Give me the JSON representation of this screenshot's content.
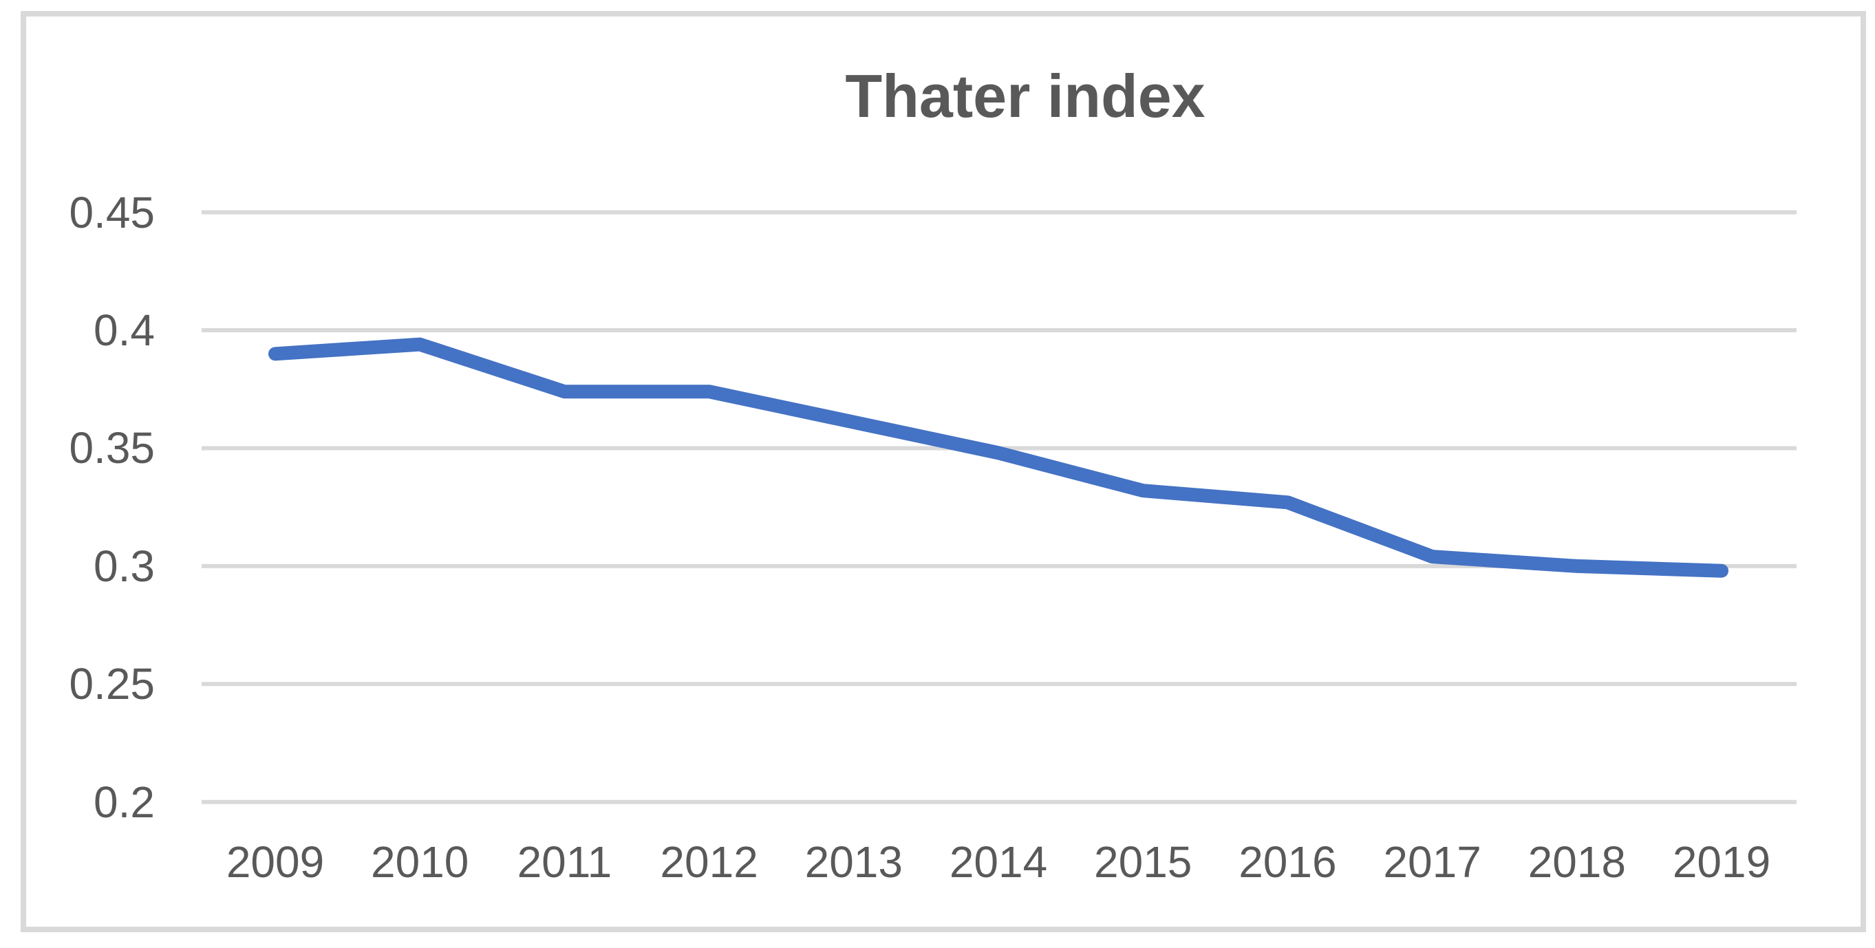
{
  "chart_data": {
    "type": "line",
    "title": "Thater index",
    "categories": [
      "2009",
      "2010",
      "2011",
      "2012",
      "2013",
      "2014",
      "2015",
      "2016",
      "2017",
      "2018",
      "2019"
    ],
    "values": [
      0.39,
      0.394,
      0.374,
      0.374,
      0.361,
      0.348,
      0.332,
      0.327,
      0.304,
      0.3,
      0.298
    ],
    "series": [
      {
        "name": "Thater index",
        "values": [
          0.39,
          0.394,
          0.374,
          0.374,
          0.361,
          0.348,
          0.332,
          0.327,
          0.304,
          0.3,
          0.298
        ]
      }
    ],
    "xlabel": "",
    "ylabel": "",
    "ylim": [
      0.2,
      0.45
    ],
    "y_ticks": [
      0.45,
      0.4,
      0.35,
      0.3,
      0.25,
      0.2
    ],
    "y_tick_labels": [
      "0.45",
      "0.4",
      "0.35",
      "0.3",
      "0.25",
      "0.2"
    ],
    "grid": true,
    "legend": false,
    "line_color": "#4472C4",
    "gridline_color": "#D9D9D9",
    "frame_border_color": "#D9D9D9",
    "text_color": "#595959",
    "title_color": "#595959"
  }
}
